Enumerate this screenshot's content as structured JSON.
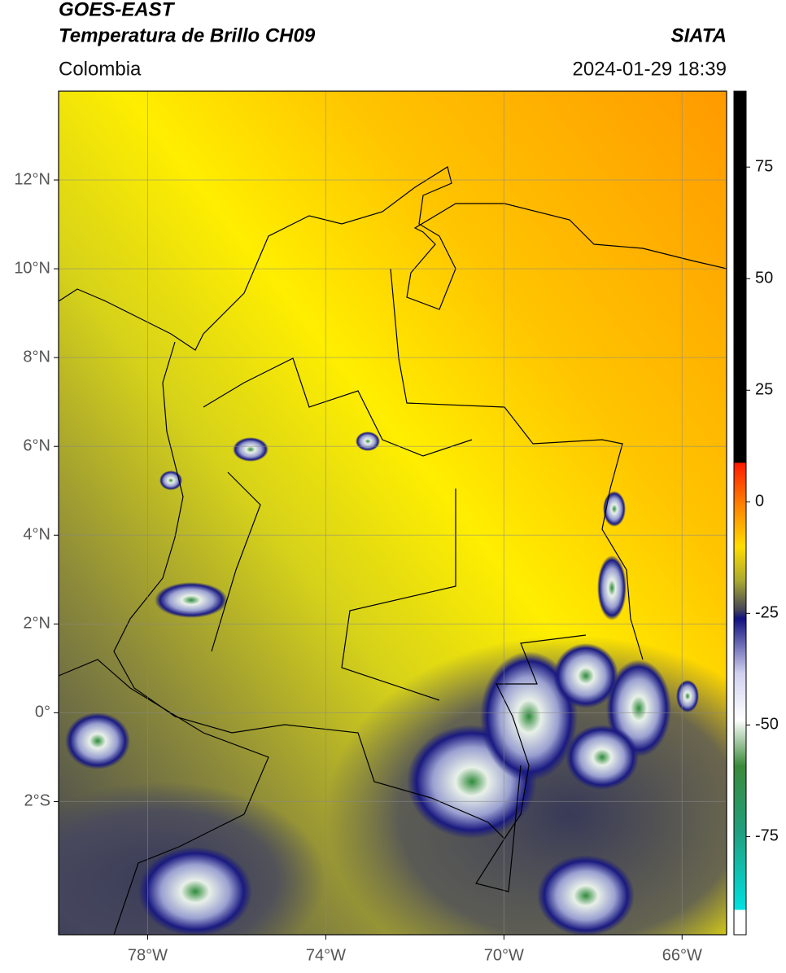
{
  "header": {
    "satellite": "GOES-EAST",
    "product": "Temperatura de Brillo CH09",
    "source": "SIATA",
    "region": "Colombia",
    "datetime": "2024-01-29 18:39"
  },
  "map": {
    "xlim": [
      -80,
      -65
    ],
    "ylim": [
      -5,
      14
    ],
    "xticks": [
      {
        "value": -78,
        "label": "78°W"
      },
      {
        "value": -74,
        "label": "74°W"
      },
      {
        "value": -70,
        "label": "70°W"
      },
      {
        "value": -66,
        "label": "66°W"
      }
    ],
    "yticks": [
      {
        "value": 12,
        "label": "12°N"
      },
      {
        "value": 10,
        "label": "10°N"
      },
      {
        "value": 8,
        "label": "8°N"
      },
      {
        "value": 6,
        "label": "6°N"
      },
      {
        "value": 4,
        "label": "4°N"
      },
      {
        "value": 2,
        "label": "2°N"
      },
      {
        "value": 0,
        "label": "0°"
      },
      {
        "value": -2,
        "label": "2°S"
      }
    ]
  },
  "colorbar": {
    "lim": [
      -97,
      92
    ],
    "ticks": [
      75,
      50,
      25,
      0,
      -25,
      -50,
      -75
    ]
  }
}
